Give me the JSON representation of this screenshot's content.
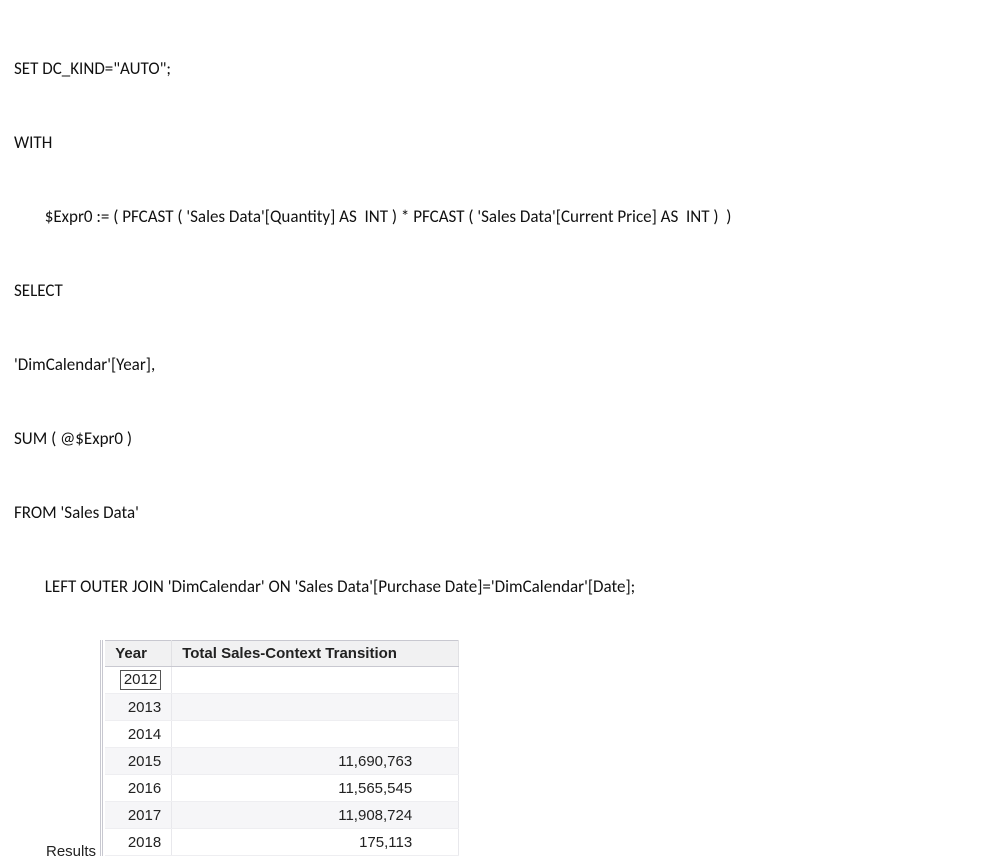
{
  "code": {
    "lines": [
      "SET DC_KIND=\"AUTO\";",
      "WITH",
      "        $Expr0 := ( PFCAST ( 'Sales Data'[Quantity] AS  INT ) * PFCAST ( 'Sales Data'[Current Price] AS  INT )  )",
      "SELECT",
      "'DimCalendar'[Year],",
      "SUM ( @$Expr0 )",
      "FROM 'Sales Data'",
      "        LEFT OUTER JOIN 'DimCalendar' ON 'Sales Data'[Purchase Date]='DimCalendar'[Date];"
    ]
  },
  "results": {
    "title": "Results",
    "columns": [
      "Year",
      "Total Sales-Context Transition"
    ],
    "rows": [
      {
        "year": "2012",
        "value": "",
        "selected": true
      },
      {
        "year": "2013",
        "value": ""
      },
      {
        "year": "2014",
        "value": ""
      },
      {
        "year": "2015",
        "value": "11,690,763"
      },
      {
        "year": "2016",
        "value": "11,565,545"
      },
      {
        "year": "2017",
        "value": "11,908,724"
      },
      {
        "year": "2018",
        "value": "175,113"
      }
    ]
  },
  "style": {
    "font_family": "Segoe UI",
    "code_fontsize_pt": 13,
    "table_fontsize_pt": 11,
    "background": "#ffffff",
    "text_color": "#222222",
    "header_bg": "#f1f1f2",
    "row_alt_bg": "#f6f6f8",
    "border_color": "#c8c8d0",
    "selected_cell_border": "#555555"
  }
}
